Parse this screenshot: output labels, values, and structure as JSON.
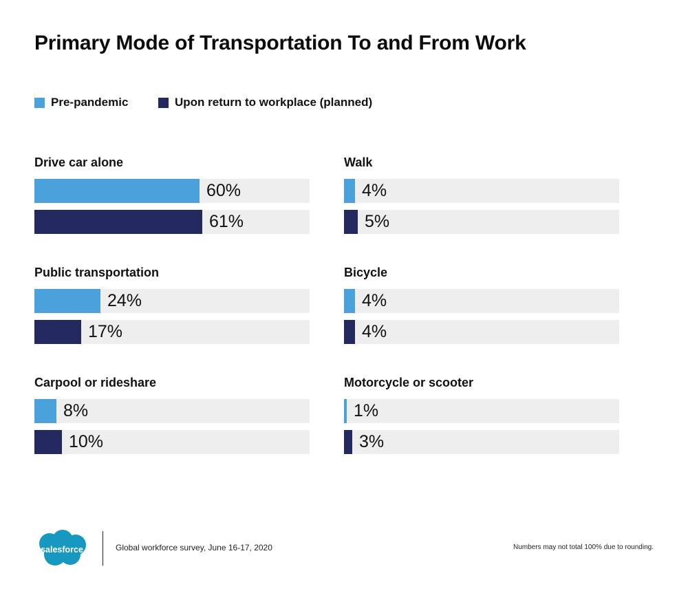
{
  "title": "Primary Mode of Transportation To and From Work",
  "legend": [
    {
      "label": "Pre-pandemic",
      "color": "#4aa1db"
    },
    {
      "label": "Upon return to workplace (planned)",
      "color": "#23295f"
    }
  ],
  "chart_data": {
    "type": "bar",
    "orientation": "horizontal",
    "title": "Primary Mode of Transportation To and From Work",
    "categories": [
      "Drive car alone",
      "Public transportation",
      "Carpool or rideshare",
      "Walk",
      "Bicycle",
      "Motorcycle or scooter"
    ],
    "series": [
      {
        "name": "Pre-pandemic",
        "color": "#4aa1db",
        "values": [
          60,
          24,
          8,
          4,
          4,
          1
        ]
      },
      {
        "name": "Upon return to workplace (planned)",
        "color": "#23295f",
        "values": [
          61,
          17,
          10,
          5,
          4,
          3
        ]
      }
    ],
    "value_suffix": "%",
    "xlim": [
      0,
      100
    ],
    "grid": false,
    "legend_position": "top-left"
  },
  "footer": {
    "logo_text": "salesforce",
    "logo_color": "#1798c1",
    "source": "Global workforce survey, June 16-17, 2020",
    "note": "Numbers may not total 100% due to rounding."
  }
}
